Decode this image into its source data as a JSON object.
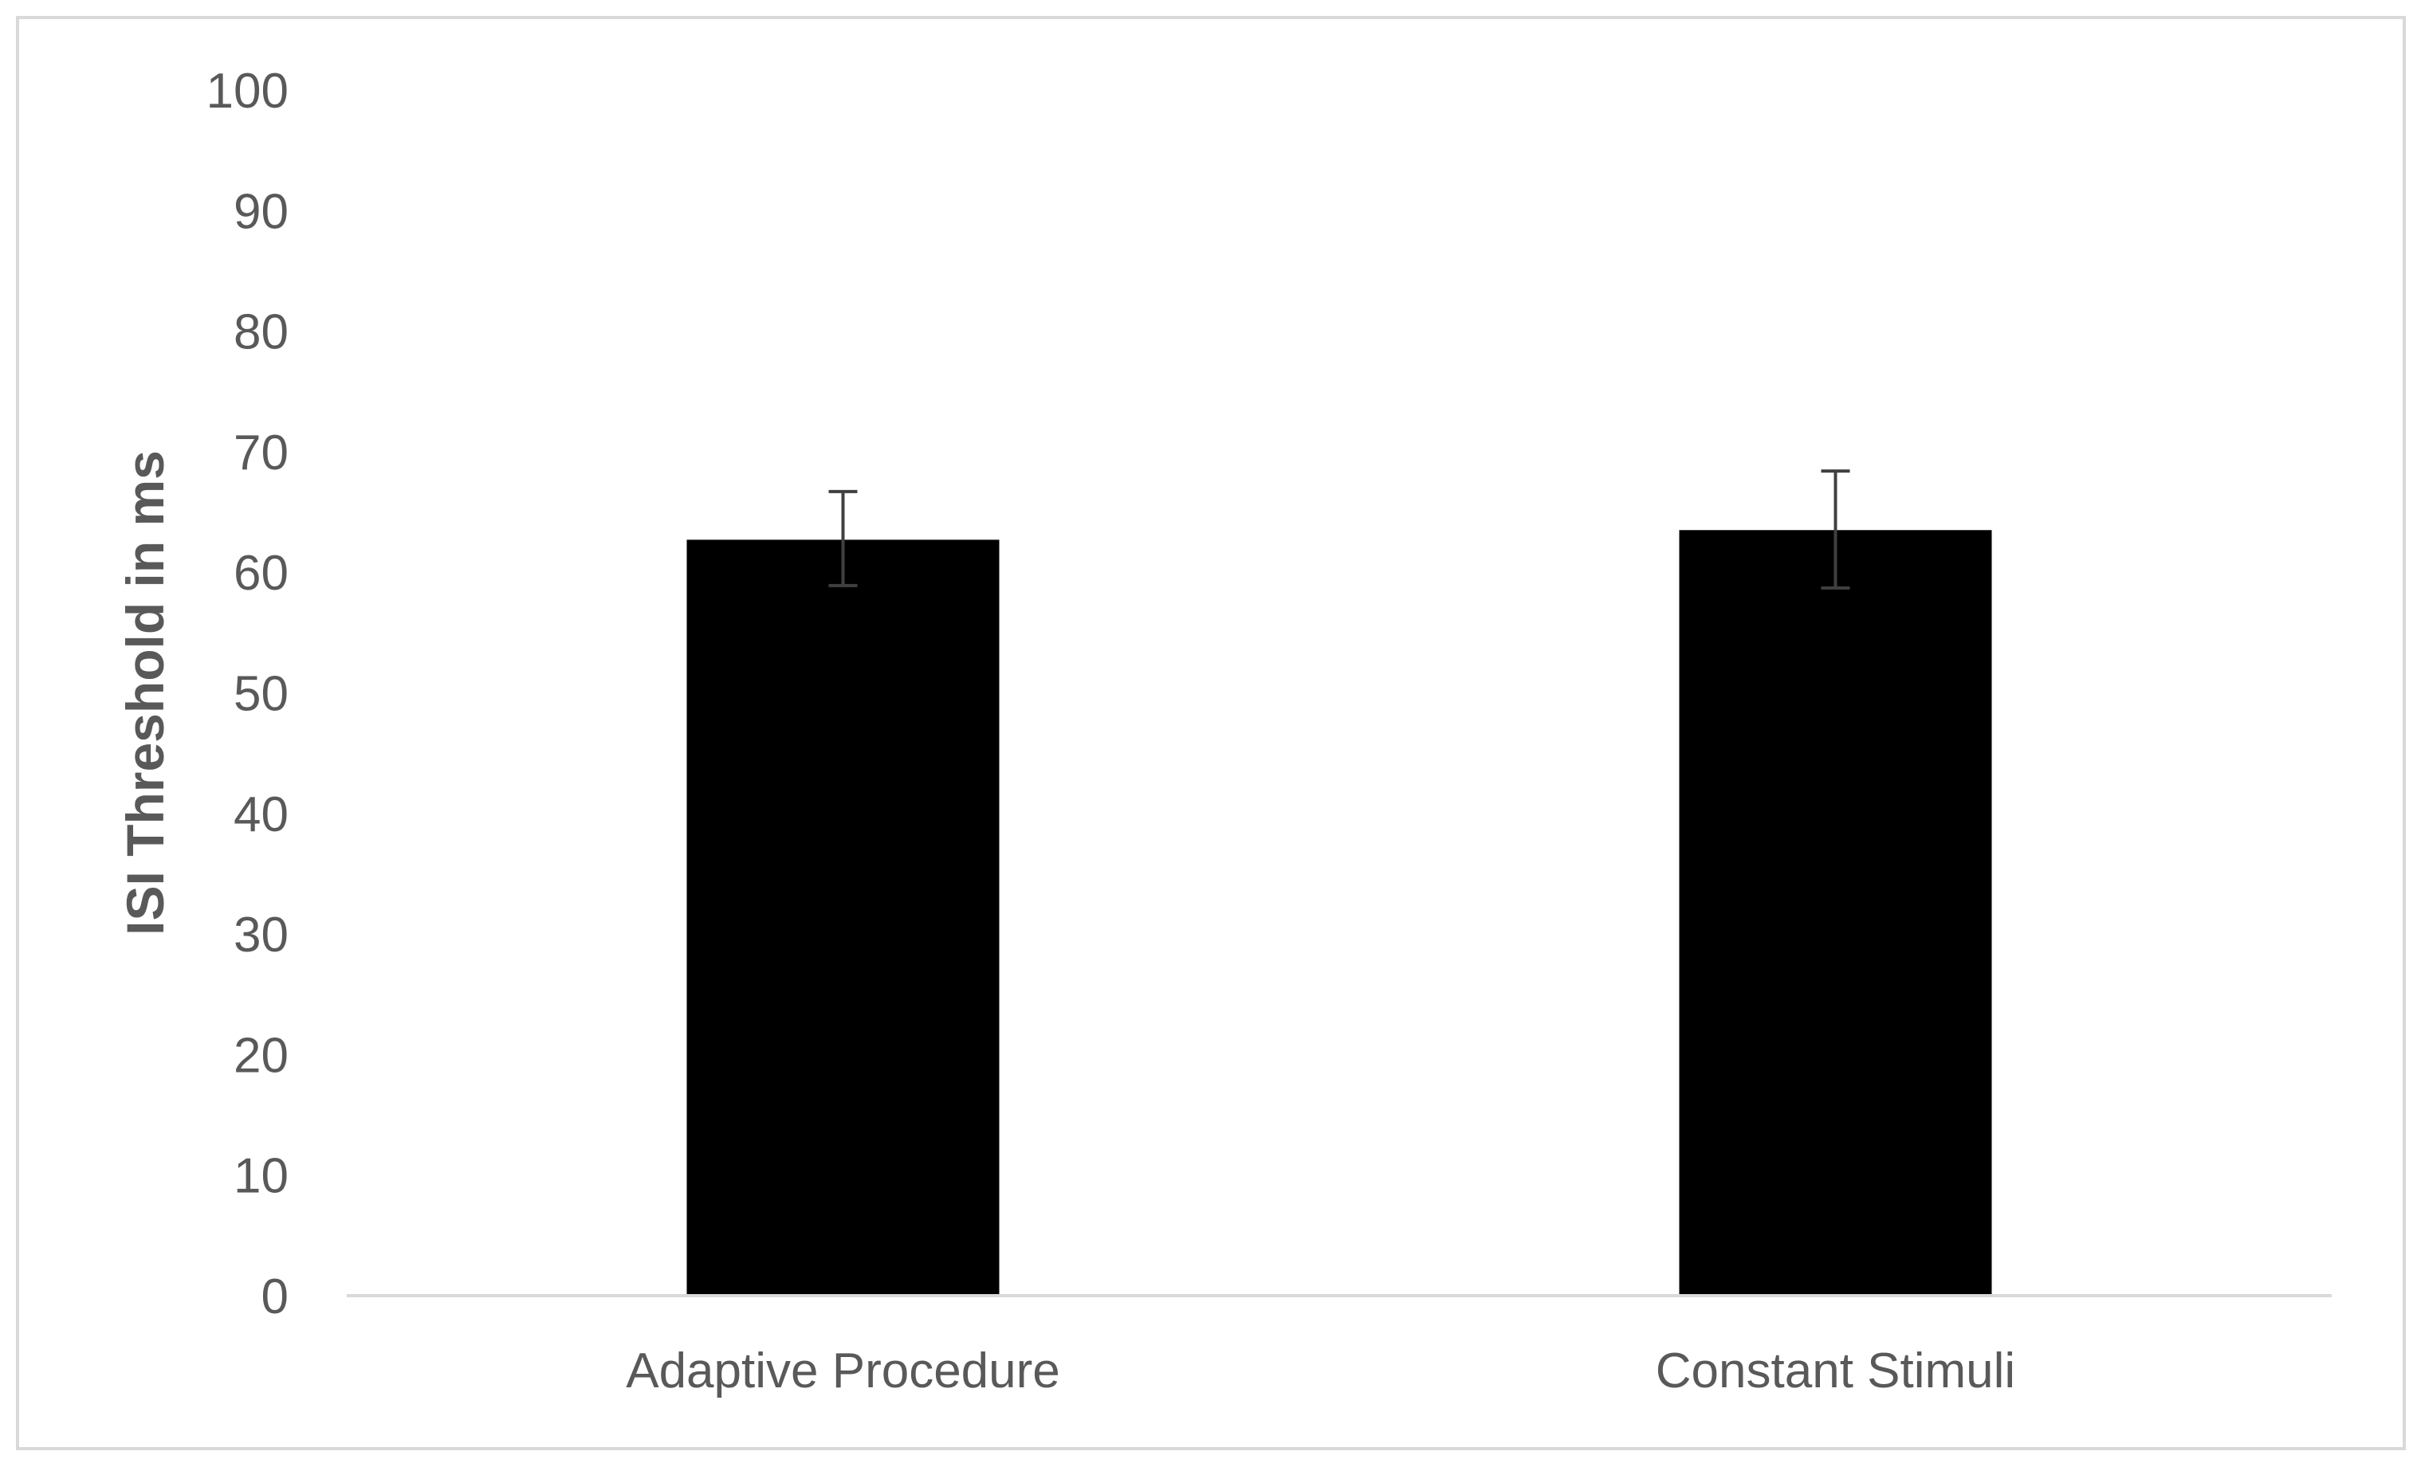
{
  "chart_data": {
    "type": "bar",
    "title": "",
    "xlabel": "",
    "ylabel": "ISI Threshold in ms",
    "categories": [
      "Adaptive Procedure",
      "Constant Stimuli"
    ],
    "series": [
      {
        "values": [
          62.7,
          63.5
        ],
        "error_low": [
          58.9,
          58.7
        ],
        "error_high": [
          66.7,
          68.4
        ],
        "color": "#000000"
      }
    ],
    "ylim": [
      0,
      100
    ],
    "yticks": [
      0,
      10,
      20,
      30,
      40,
      50,
      60,
      70,
      80,
      90,
      100
    ],
    "grid": false,
    "legend": "none",
    "colors": {
      "bar": "#000000",
      "axis": "#d9d9d9",
      "text": "#595959",
      "error_bar": "#404040",
      "frame": "#d9d9d9"
    }
  }
}
